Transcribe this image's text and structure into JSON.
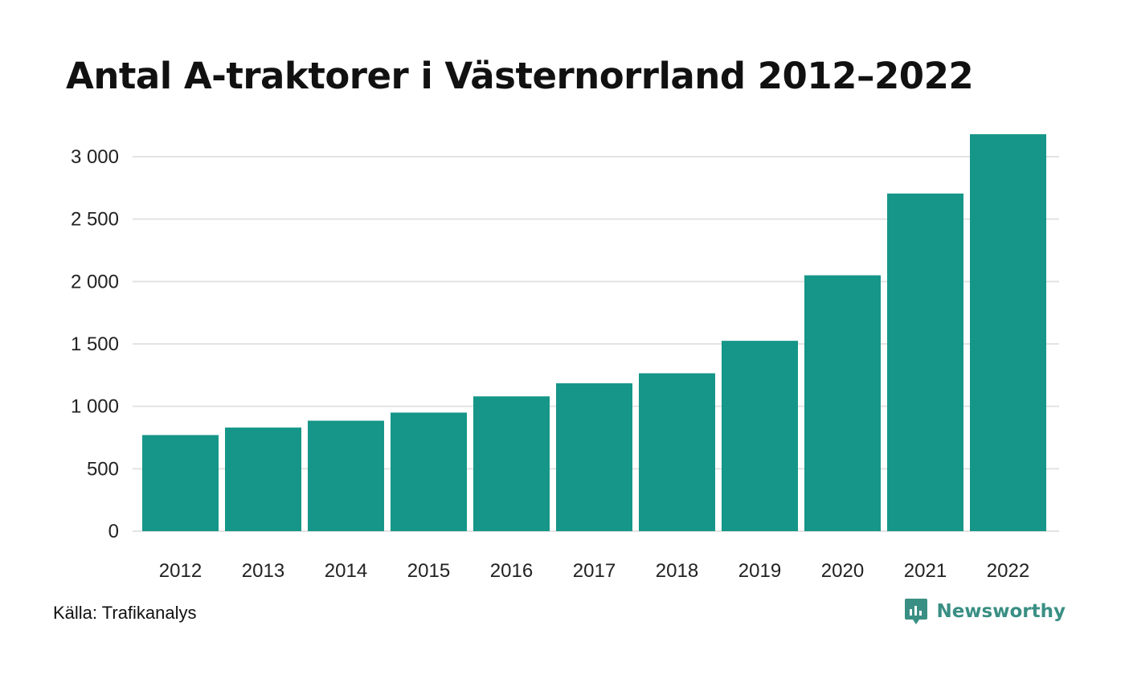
{
  "title": "Antal A-traktorer i Västernorrland 2012–2022",
  "source": "Källa: Trafikanalys",
  "brand": {
    "name": "Newsworthy",
    "color": "#3a8f84",
    "icon": "newsworthy-logo-icon"
  },
  "colors": {
    "bar": "#169688",
    "grid": "#e3e3e3"
  },
  "chart_data": {
    "type": "bar",
    "title": "Antal A-traktorer i Västernorrland 2012–2022",
    "xlabel": "",
    "ylabel": "",
    "categories": [
      "2012",
      "2013",
      "2014",
      "2015",
      "2016",
      "2017",
      "2018",
      "2019",
      "2020",
      "2021",
      "2022"
    ],
    "values": [
      770,
      830,
      885,
      950,
      1080,
      1185,
      1265,
      1525,
      2050,
      2705,
      3180
    ],
    "ylim": [
      0,
      3200
    ],
    "yticks": [
      0,
      500,
      1000,
      1500,
      2000,
      2500,
      3000
    ],
    "ytick_labels": [
      "0",
      "500",
      "1 000",
      "1 500",
      "2 000",
      "2 500",
      "3 000"
    ],
    "grid": true,
    "legend": "none"
  }
}
